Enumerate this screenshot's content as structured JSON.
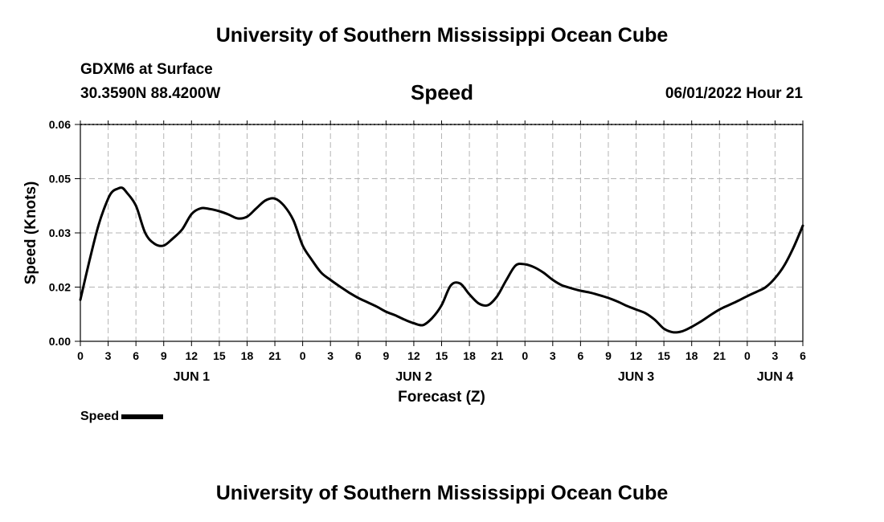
{
  "header": {
    "title": "University of Southern Mississippi Ocean Cube",
    "footer_title": "University of Southern Mississippi Ocean Cube",
    "station": "GDXM6 at Surface",
    "coords": "30.3590N  88.4200W",
    "subtitle": "Speed",
    "datetime": "06/01/2022 Hour 21"
  },
  "legend": {
    "label": "Speed"
  },
  "chart_data": {
    "type": "line",
    "title": "Speed",
    "xlabel": "Forecast (Z)",
    "ylabel": "Speed (Knots)",
    "xlim": [
      0,
      78
    ],
    "ylim": [
      0,
      0.06
    ],
    "grid": true,
    "x_ticks": [
      {
        "hour": 0,
        "label": "0"
      },
      {
        "hour": 3,
        "label": "3"
      },
      {
        "hour": 6,
        "label": "6"
      },
      {
        "hour": 9,
        "label": "9"
      },
      {
        "hour": 12,
        "label": "12"
      },
      {
        "hour": 15,
        "label": "15"
      },
      {
        "hour": 18,
        "label": "18"
      },
      {
        "hour": 21,
        "label": "21"
      },
      {
        "hour": 24,
        "label": "0"
      },
      {
        "hour": 27,
        "label": "3"
      },
      {
        "hour": 30,
        "label": "6"
      },
      {
        "hour": 33,
        "label": "9"
      },
      {
        "hour": 36,
        "label": "12"
      },
      {
        "hour": 39,
        "label": "15"
      },
      {
        "hour": 42,
        "label": "18"
      },
      {
        "hour": 45,
        "label": "21"
      },
      {
        "hour": 48,
        "label": "0"
      },
      {
        "hour": 51,
        "label": "3"
      },
      {
        "hour": 54,
        "label": "6"
      },
      {
        "hour": 57,
        "label": "9"
      },
      {
        "hour": 60,
        "label": "12"
      },
      {
        "hour": 63,
        "label": "15"
      },
      {
        "hour": 66,
        "label": "18"
      },
      {
        "hour": 69,
        "label": "21"
      },
      {
        "hour": 72,
        "label": "0"
      },
      {
        "hour": 75,
        "label": "3"
      },
      {
        "hour": 78,
        "label": "6"
      }
    ],
    "y_ticks": [
      {
        "value": 0.0,
        "label": "0.00"
      },
      {
        "value": 0.015,
        "label": "0.02"
      },
      {
        "value": 0.03,
        "label": "0.03"
      },
      {
        "value": 0.045,
        "label": "0.05"
      },
      {
        "value": 0.06,
        "label": "0.06"
      }
    ],
    "day_labels": [
      {
        "hour": 12,
        "label": "JUN 1"
      },
      {
        "hour": 36,
        "label": "JUN 2"
      },
      {
        "hour": 60,
        "label": "JUN 3"
      },
      {
        "hour": 75,
        "label": "JUN 4"
      }
    ],
    "series": [
      {
        "name": "Speed",
        "color": "#000000",
        "x": [
          0,
          1,
          2,
          3,
          3.5,
          4,
          4.5,
          5,
          6,
          7,
          8,
          9,
          10,
          11,
          12,
          13,
          14,
          15,
          16,
          17,
          18,
          19,
          20,
          21,
          22,
          23,
          24,
          25,
          26,
          27,
          28,
          29,
          30,
          31,
          32,
          33,
          34,
          35,
          36,
          37,
          38,
          39,
          40,
          41,
          42,
          43,
          44,
          45,
          46,
          47,
          48,
          49,
          50,
          51,
          52,
          53,
          54,
          55,
          56,
          57,
          58,
          59,
          60,
          61,
          62,
          63,
          64,
          65,
          66,
          67,
          68,
          69,
          70,
          71,
          72,
          73,
          74,
          75,
          76,
          77,
          78
        ],
        "y": [
          0.0115,
          0.0225,
          0.0325,
          0.0395,
          0.0415,
          0.0422,
          0.0425,
          0.0412,
          0.0375,
          0.03,
          0.027,
          0.0265,
          0.0285,
          0.031,
          0.0352,
          0.0368,
          0.0366,
          0.036,
          0.0351,
          0.034,
          0.0345,
          0.0368,
          0.039,
          0.0395,
          0.0375,
          0.0335,
          0.0265,
          0.0225,
          0.019,
          0.017,
          0.0152,
          0.0135,
          0.012,
          0.0108,
          0.0096,
          0.0082,
          0.0072,
          0.006,
          0.005,
          0.0045,
          0.0065,
          0.01,
          0.0155,
          0.016,
          0.013,
          0.0105,
          0.01,
          0.0125,
          0.017,
          0.021,
          0.0213,
          0.0205,
          0.019,
          0.017,
          0.0155,
          0.0147,
          0.014,
          0.0135,
          0.0128,
          0.012,
          0.011,
          0.0098,
          0.0088,
          0.0078,
          0.006,
          0.0035,
          0.0025,
          0.0028,
          0.004,
          0.0055,
          0.0072,
          0.0088,
          0.01,
          0.0112,
          0.0125,
          0.0137,
          0.015,
          0.0175,
          0.021,
          0.026,
          0.032
        ]
      }
    ]
  }
}
